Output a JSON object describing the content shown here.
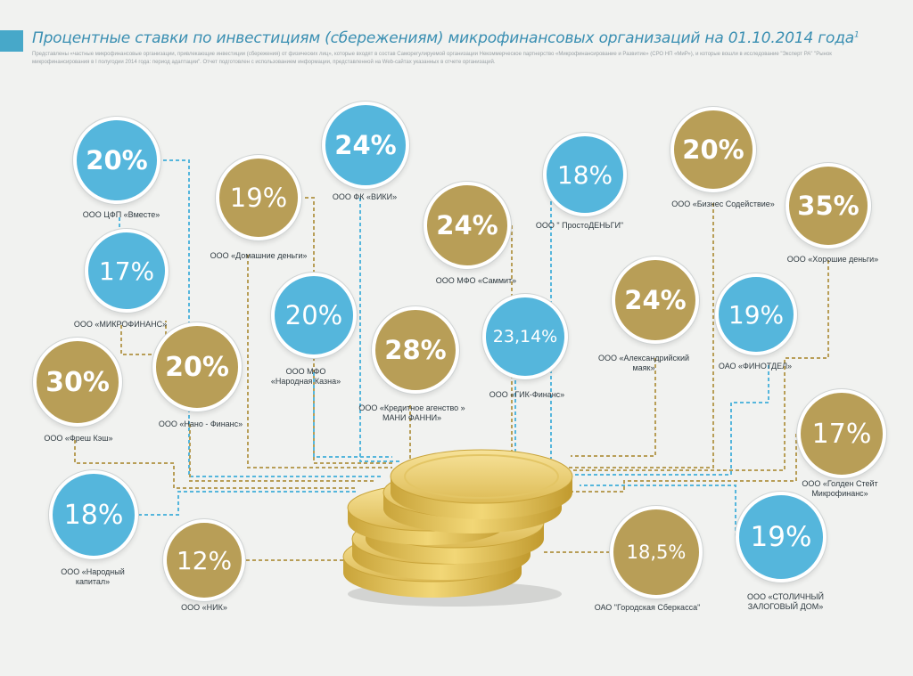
{
  "header": {
    "title": "Процентные ставки по инвестициям (сбережениям) микрофинансовых организаций на 01.10.2014 года",
    "footnote_mark": "1",
    "note": "Представлены «частные микрофинансовые организации, привлекающие инвестиции (сбережения) от физических лиц», которые входят в состав Саморегулируемой организации Некоммерческое партнерство «Микрофинансирование и Развитие» (СРО НП «МиР»), и которые вошли в исследование \"Эксперт РА\" \"Рынок микрофинансирования в I полугодии 2014 года: период адаптации\". Отчет подготовлен с использованием информации, представленной на Web-сайтах указанных в отчете организаций."
  },
  "colors": {
    "blue": "#55b6dc",
    "gold": "#b89e57",
    "title": "#3a8fb2"
  },
  "orgs": [
    {
      "rate": "20%",
      "name": "ООО ЦФП «Вместе»"
    },
    {
      "rate": "19%",
      "name": "ООО «Домашние деньги»"
    },
    {
      "rate": "24%",
      "name": "ООО ФК «ВИКИ»"
    },
    {
      "rate": "24%",
      "name": "ООО МФО «Саммит»"
    },
    {
      "rate": "18%",
      "name": "ООО \" ПростоДЕНЬГИ\""
    },
    {
      "rate": "20%",
      "name": "ООО «Бизнес Содействие»"
    },
    {
      "rate": "35%",
      "name": "ООО «Хорошие деньги»"
    },
    {
      "rate": "17%",
      "name": "ООО «МИКРОФИНАНС»"
    },
    {
      "rate": "20%",
      "name": "ООО МФО\n«Народная Казна»"
    },
    {
      "rate": "28%",
      "name": "ООО «Кредитное агенство »\nМАНИ ФАННИ»"
    },
    {
      "rate": "23,14%",
      "name": "ООО «ГИК-Финанс»"
    },
    {
      "rate": "24%",
      "name": "ООО «Александрийский\nмаяк»"
    },
    {
      "rate": "19%",
      "name": "ОАО «ФИНОТДЕЛ»"
    },
    {
      "rate": "30%",
      "name": "ООО «Фреш Кэш»"
    },
    {
      "rate": "20%",
      "name": "ООО «Нано - Финанс»"
    },
    {
      "rate": "17%",
      "name": "ООО «Голден Стейт\nМикрофинанс»"
    },
    {
      "rate": "18%",
      "name": "ООО «Народный\nкапитал»"
    },
    {
      "rate": "12%",
      "name": "ООО «НИК»"
    },
    {
      "rate": "18,5%",
      "name": "ОАО \"Городская Сберкасса\""
    },
    {
      "rate": "19%",
      "name": "ООО «СТОЛИЧНЫЙ\nЗАЛОГОВЫЙ ДОМ»"
    }
  ]
}
